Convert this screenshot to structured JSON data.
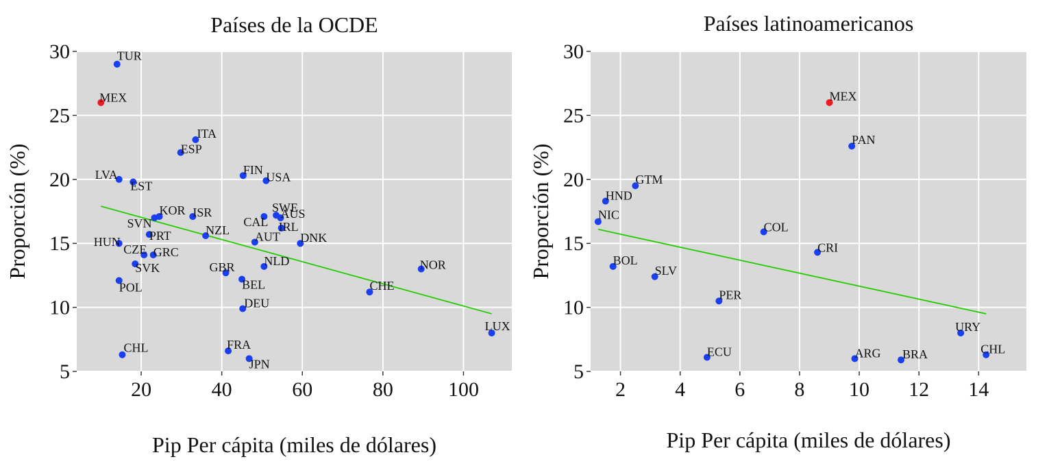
{
  "chart_data": [
    {
      "type": "scatter",
      "title": "Países de la OCDE",
      "xlabel": "Pip Per cápita (miles de dólares)",
      "ylabel": "Proporción (%)",
      "xlim": [
        4,
        112
      ],
      "ylim": [
        5,
        30
      ],
      "xticks": [
        20,
        40,
        60,
        80,
        100
      ],
      "yticks": [
        5,
        10,
        15,
        20,
        25,
        30
      ],
      "grid": true,
      "colors": {
        "default": "#1a3ff0",
        "highlight": "#ee1c25",
        "trend": "#22cc00",
        "panel": "#d9d9d9",
        "grid": "#ffffff"
      },
      "trend": {
        "x": [
          10,
          107
        ],
        "y": [
          17.9,
          9.5
        ]
      },
      "points": [
        {
          "label": "TUR",
          "x": 14,
          "y": 29.0
        },
        {
          "label": "MEX",
          "x": 10,
          "y": 26.0,
          "highlight": true
        },
        {
          "label": "ITA",
          "x": 33.5,
          "y": 23.1
        },
        {
          "label": "ESP",
          "x": 29.8,
          "y": 22.1
        },
        {
          "label": "FIN",
          "x": 45.3,
          "y": 20.3
        },
        {
          "label": "USA",
          "x": 51.0,
          "y": 19.9
        },
        {
          "label": "LVA",
          "x": 14.5,
          "y": 20.0
        },
        {
          "label": "EST",
          "x": 18.0,
          "y": 19.8
        },
        {
          "label": "KOR",
          "x": 24.5,
          "y": 17.1
        },
        {
          "label": "SVN",
          "x": 23.3,
          "y": 17.0
        },
        {
          "label": "ISR",
          "x": 32.8,
          "y": 17.1
        },
        {
          "label": "SWE",
          "x": 53.5,
          "y": 17.2
        },
        {
          "label": "AUS",
          "x": 54.6,
          "y": 17.0
        },
        {
          "label": "CAL",
          "x": 50.5,
          "y": 17.1
        },
        {
          "label": "IRL",
          "x": 54.8,
          "y": 16.2
        },
        {
          "label": "NZL",
          "x": 36.0,
          "y": 15.6
        },
        {
          "label": "PRT",
          "x": 22.0,
          "y": 15.7
        },
        {
          "label": "AUT",
          "x": 48.2,
          "y": 15.1
        },
        {
          "label": "DNK",
          "x": 59.5,
          "y": 15.0
        },
        {
          "label": "HUN",
          "x": 14.5,
          "y": 15.0
        },
        {
          "label": "CZE",
          "x": 20.7,
          "y": 14.1
        },
        {
          "label": "GRC",
          "x": 23.0,
          "y": 14.1
        },
        {
          "label": "SVK",
          "x": 18.5,
          "y": 13.4
        },
        {
          "label": "NLD",
          "x": 50.5,
          "y": 13.2
        },
        {
          "label": "GBR",
          "x": 41.0,
          "y": 12.7
        },
        {
          "label": "BEL",
          "x": 45.0,
          "y": 12.2
        },
        {
          "label": "POL",
          "x": 14.5,
          "y": 12.1
        },
        {
          "label": "NOR",
          "x": 89.5,
          "y": 13.0
        },
        {
          "label": "CHE",
          "x": 76.7,
          "y": 11.2
        },
        {
          "label": "DEU",
          "x": 45.2,
          "y": 9.9
        },
        {
          "label": "LUX",
          "x": 107.0,
          "y": 8.0
        },
        {
          "label": "CHL",
          "x": 15.3,
          "y": 6.3
        },
        {
          "label": "FRA",
          "x": 41.6,
          "y": 6.6
        },
        {
          "label": "JPN",
          "x": 46.8,
          "y": 6.0
        }
      ]
    },
    {
      "type": "scatter",
      "title": "Países latinoamericanos",
      "xlabel": "Pip Per cápita (miles de dólares)",
      "ylabel": "Proporción (%)",
      "xlim": [
        1.0,
        15.6
      ],
      "ylim": [
        5,
        30
      ],
      "xticks": [
        2,
        4,
        6,
        8,
        10,
        12,
        14
      ],
      "yticks": [
        5,
        10,
        15,
        20,
        25,
        30
      ],
      "grid": true,
      "colors": {
        "default": "#1a3ff0",
        "highlight": "#ee1c25",
        "trend": "#22cc00",
        "panel": "#d9d9d9",
        "grid": "#ffffff"
      },
      "trend": {
        "x": [
          1.25,
          14.25
        ],
        "y": [
          16.1,
          9.5
        ]
      },
      "points": [
        {
          "label": "MEX",
          "x": 9.0,
          "y": 26.0,
          "highlight": true
        },
        {
          "label": "PAN",
          "x": 9.75,
          "y": 22.6
        },
        {
          "label": "GTM",
          "x": 2.5,
          "y": 19.5
        },
        {
          "label": "HND",
          "x": 1.5,
          "y": 18.3
        },
        {
          "label": "NIC",
          "x": 1.25,
          "y": 16.7
        },
        {
          "label": "COL",
          "x": 6.8,
          "y": 15.9
        },
        {
          "label": "CRI",
          "x": 8.6,
          "y": 14.3
        },
        {
          "label": "BOL",
          "x": 1.75,
          "y": 13.2
        },
        {
          "label": "SLV",
          "x": 3.15,
          "y": 12.4
        },
        {
          "label": "PER",
          "x": 5.3,
          "y": 10.5
        },
        {
          "label": "URY",
          "x": 13.4,
          "y": 8.0
        },
        {
          "label": "CHL",
          "x": 14.25,
          "y": 6.3
        },
        {
          "label": "ECU",
          "x": 4.9,
          "y": 6.1
        },
        {
          "label": "ARG",
          "x": 9.85,
          "y": 6.0
        },
        {
          "label": "BRA",
          "x": 11.4,
          "y": 5.9
        }
      ]
    }
  ]
}
